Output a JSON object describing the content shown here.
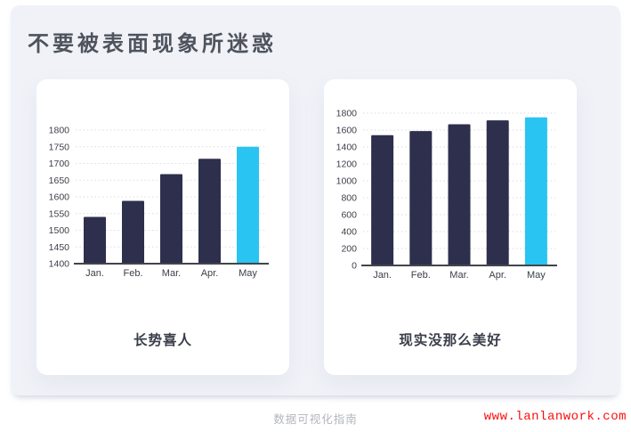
{
  "page": {
    "title": "不要被表面现象所迷惑",
    "footer": {
      "caption": "数据可视化指南",
      "url": "www.lanlanwork.com"
    }
  },
  "colors": {
    "panel_bg": "#f0f2f8",
    "card_bg": "#ffffff",
    "title": "#4e535c",
    "caption": "#3a3e49",
    "grid": "#d8dbe2",
    "axis": "#43454c",
    "tick_label": "#3c4048",
    "footer_caption": "#b3b6bd",
    "footer_url": "#fc0d0d"
  },
  "chart_data": [
    {
      "type": "bar",
      "title": "长势喜人",
      "categories": [
        "Jan.",
        "Feb.",
        "Mar.",
        "Apr.",
        "May"
      ],
      "values": [
        1540,
        1588,
        1668,
        1714,
        1750
      ],
      "xlabel": "",
      "ylabel": "",
      "ylim": [
        1400,
        1800
      ],
      "ytick_step": 50,
      "grid": true,
      "legend": "none",
      "bar_color": "#2d2f4d",
      "highlight_index": 4,
      "highlight_color": "#29c4f2"
    },
    {
      "type": "bar",
      "title": "现实没那么美好",
      "categories": [
        "Jan.",
        "Feb.",
        "Mar.",
        "Apr.",
        "May"
      ],
      "values": [
        1540,
        1588,
        1668,
        1714,
        1750
      ],
      "xlabel": "",
      "ylabel": "",
      "ylim": [
        0,
        1800
      ],
      "ytick_step": 200,
      "grid": true,
      "legend": "none",
      "bar_color": "#2d2f4d",
      "highlight_index": 4,
      "highlight_color": "#29c4f2"
    }
  ]
}
